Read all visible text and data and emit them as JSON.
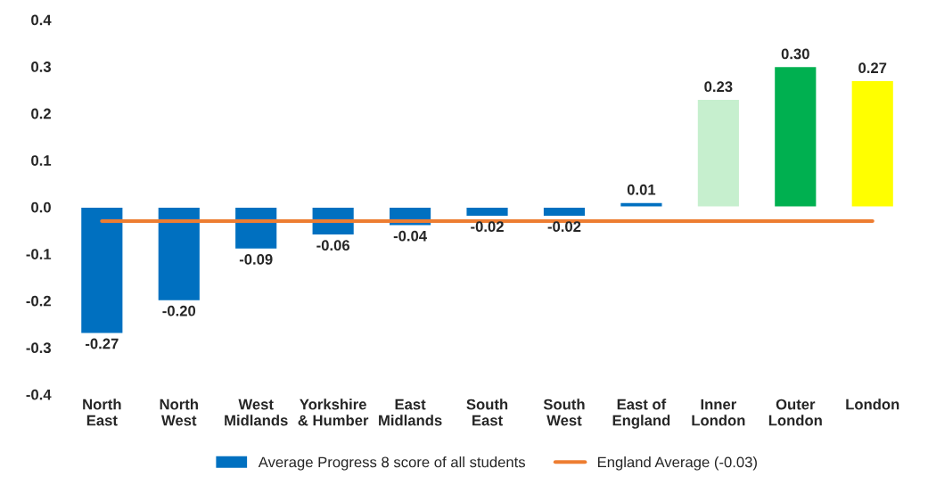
{
  "chart_data": {
    "type": "bar",
    "categories": [
      "North East",
      "North West",
      "West Midlands",
      "Yorkshire & Humber",
      "East Midlands",
      "South East",
      "South West",
      "East of England",
      "Inner London",
      "Outer London",
      "London"
    ],
    "series": [
      {
        "name": "Average Progress 8 score of all students",
        "color": "#0070c0",
        "colors": [
          "#0070c0",
          "#0070c0",
          "#0070c0",
          "#0070c0",
          "#0070c0",
          "#0070c0",
          "#0070c0",
          "#0070c0",
          "#c6efce",
          "#00b050",
          "#ffff00"
        ],
        "values": [
          -0.27,
          -0.2,
          -0.09,
          -0.06,
          -0.04,
          -0.02,
          -0.02,
          0.01,
          0.23,
          0.3,
          0.27
        ],
        "value_labels": [
          "-0.27",
          "-0.20",
          "-0.09",
          "-0.06",
          "-0.04",
          "-0.02",
          "-0.02",
          "0.01",
          "0.23",
          "0.30",
          "0.27"
        ]
      },
      {
        "name": "England Average (-0.03)",
        "type": "line",
        "color": "#ed7d31",
        "values": [
          -0.03,
          -0.03,
          -0.03,
          -0.03,
          -0.03,
          -0.03,
          -0.03,
          -0.03,
          -0.03,
          -0.03,
          -0.03
        ]
      }
    ],
    "ylim": [
      -0.4,
      0.4
    ],
    "yticks": [
      -0.4,
      -0.3,
      -0.2,
      -0.1,
      {
        "value": 0,
        "label": "0.0"
      },
      0.1,
      0.2,
      0.3,
      0.4
    ],
    "grid": false,
    "legend": "bottom"
  }
}
